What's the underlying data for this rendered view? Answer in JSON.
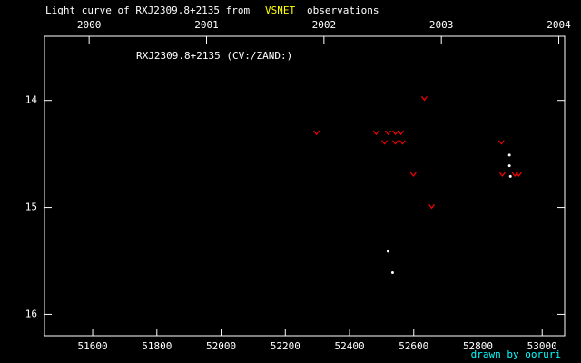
{
  "chart_data": {
    "type": "scatter",
    "title_prefix": "Light curve of RXJ2309.8+2135 from",
    "title_source": "VSNET",
    "title_suffix": "observations",
    "annotation": "RXJ2309.8+2135 (CV:/ZAND:)",
    "footer": "drawn by ooruri",
    "title_source_color": "#ffff00",
    "footer_color": "#00ffff",
    "xlim": [
      51450,
      53070
    ],
    "xticks": [
      51600,
      51800,
      52000,
      52200,
      52400,
      52600,
      52800,
      53000
    ],
    "x2lim": [
      1999.62,
      2004.05
    ],
    "x2ticks": [
      2000,
      2001,
      2002,
      2003,
      2004
    ],
    "ylim": [
      13.4,
      16.2
    ],
    "yticks": [
      14,
      15,
      16
    ],
    "y_inverted": true,
    "series": [
      {
        "color": "#ff0000",
        "marker": "v",
        "x": [
          52297,
          52483,
          52509,
          52520,
          52543,
          52543,
          52560,
          52565,
          52599,
          52633,
          52656,
          52873,
          52876,
          52915,
          52927
        ],
        "values": [
          14.3,
          14.3,
          14.39,
          14.3,
          14.3,
          14.39,
          14.3,
          14.39,
          14.69,
          13.98,
          14.99,
          14.39,
          14.69,
          14.69,
          14.69
        ]
      },
      {
        "color": "#ffffff",
        "marker": "dot",
        "x": [
          52520,
          52534,
          52898,
          52898,
          52901
        ],
        "values": [
          15.41,
          15.61,
          14.51,
          14.61,
          14.71
        ]
      }
    ]
  }
}
